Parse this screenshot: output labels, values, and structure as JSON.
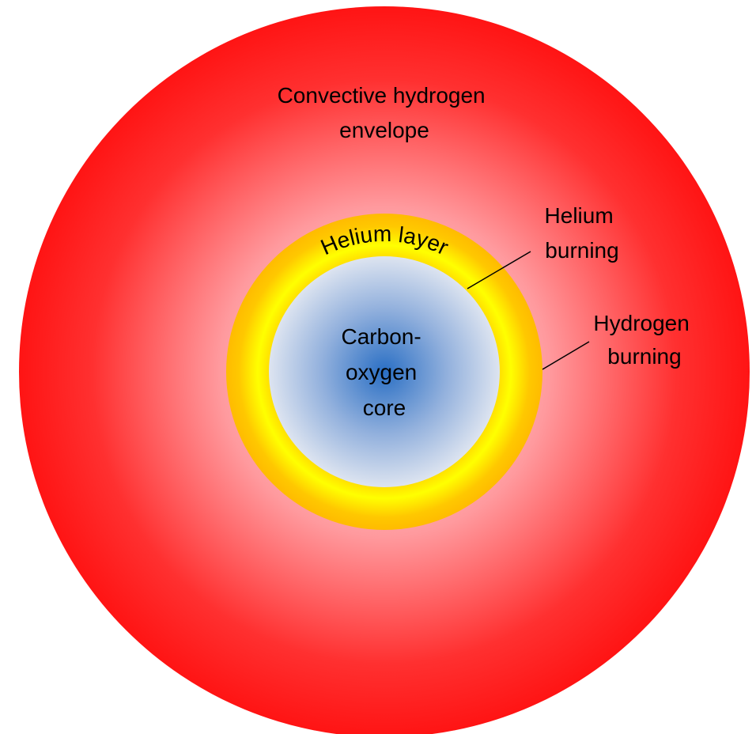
{
  "envelope": {
    "lines": [
      "Convective hydrogen",
      "envelope"
    ]
  },
  "helium_layer": {
    "label": "Helium layer"
  },
  "helium_burning": {
    "lines": [
      "Helium",
      "burning"
    ]
  },
  "hydrogen_burning": {
    "lines": [
      "Hydrogen",
      "burning"
    ]
  },
  "core": {
    "lines": [
      "Carbon-",
      "oxygen",
      "core"
    ]
  }
}
